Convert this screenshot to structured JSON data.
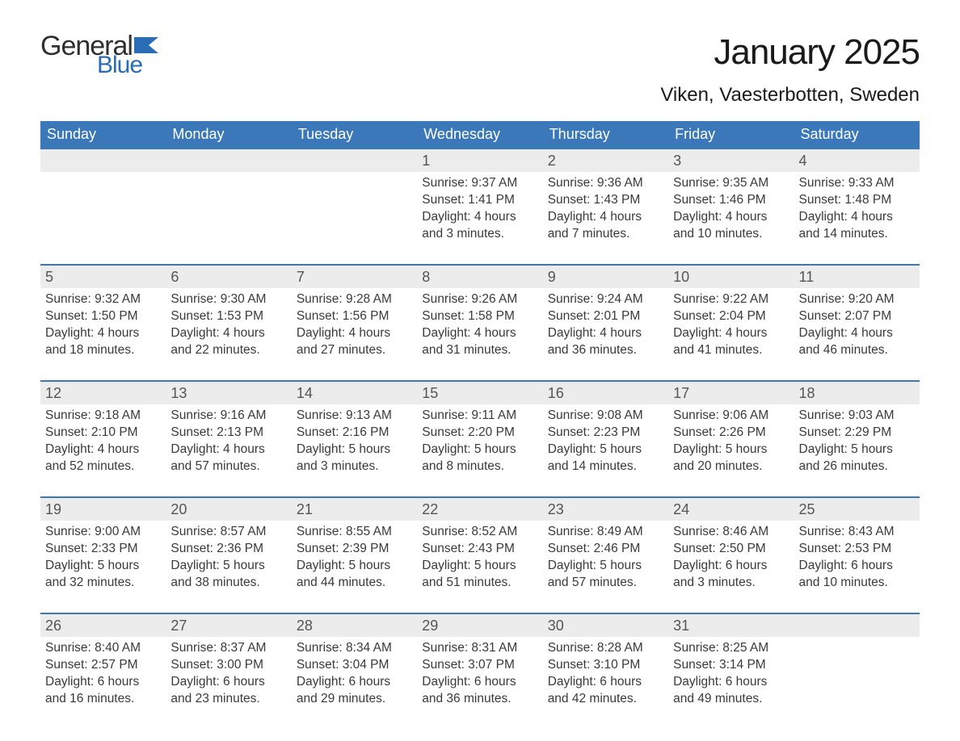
{
  "brand": {
    "word1": "General",
    "word2": "Blue",
    "flag_color": "#2a6db5",
    "text_color": "#2f2f2f"
  },
  "header": {
    "title": "January 2025",
    "location": "Viken, Vaesterbotten, Sweden"
  },
  "style": {
    "header_bg": "#3b78b9",
    "header_text": "#ffffff",
    "row_divider": "#3b78b9",
    "daynum_bg": "#ececec",
    "daynum_color": "#555555",
    "body_text": "#3a3a3a",
    "page_bg": "#ffffff",
    "title_fontsize": 44,
    "location_fontsize": 24,
    "weekday_fontsize": 18,
    "body_fontsize": 15.5
  },
  "weekdays": [
    "Sunday",
    "Monday",
    "Tuesday",
    "Wednesday",
    "Thursday",
    "Friday",
    "Saturday"
  ],
  "weeks": [
    [
      {
        "n": "",
        "empty": true
      },
      {
        "n": "",
        "empty": true
      },
      {
        "n": "",
        "empty": true
      },
      {
        "n": "1",
        "sunrise": "Sunrise: 9:37 AM",
        "sunset": "Sunset: 1:41 PM",
        "day1": "Daylight: 4 hours",
        "day2": "and 3 minutes."
      },
      {
        "n": "2",
        "sunrise": "Sunrise: 9:36 AM",
        "sunset": "Sunset: 1:43 PM",
        "day1": "Daylight: 4 hours",
        "day2": "and 7 minutes."
      },
      {
        "n": "3",
        "sunrise": "Sunrise: 9:35 AM",
        "sunset": "Sunset: 1:46 PM",
        "day1": "Daylight: 4 hours",
        "day2": "and 10 minutes."
      },
      {
        "n": "4",
        "sunrise": "Sunrise: 9:33 AM",
        "sunset": "Sunset: 1:48 PM",
        "day1": "Daylight: 4 hours",
        "day2": "and 14 minutes."
      }
    ],
    [
      {
        "n": "5",
        "sunrise": "Sunrise: 9:32 AM",
        "sunset": "Sunset: 1:50 PM",
        "day1": "Daylight: 4 hours",
        "day2": "and 18 minutes."
      },
      {
        "n": "6",
        "sunrise": "Sunrise: 9:30 AM",
        "sunset": "Sunset: 1:53 PM",
        "day1": "Daylight: 4 hours",
        "day2": "and 22 minutes."
      },
      {
        "n": "7",
        "sunrise": "Sunrise: 9:28 AM",
        "sunset": "Sunset: 1:56 PM",
        "day1": "Daylight: 4 hours",
        "day2": "and 27 minutes."
      },
      {
        "n": "8",
        "sunrise": "Sunrise: 9:26 AM",
        "sunset": "Sunset: 1:58 PM",
        "day1": "Daylight: 4 hours",
        "day2": "and 31 minutes."
      },
      {
        "n": "9",
        "sunrise": "Sunrise: 9:24 AM",
        "sunset": "Sunset: 2:01 PM",
        "day1": "Daylight: 4 hours",
        "day2": "and 36 minutes."
      },
      {
        "n": "10",
        "sunrise": "Sunrise: 9:22 AM",
        "sunset": "Sunset: 2:04 PM",
        "day1": "Daylight: 4 hours",
        "day2": "and 41 minutes."
      },
      {
        "n": "11",
        "sunrise": "Sunrise: 9:20 AM",
        "sunset": "Sunset: 2:07 PM",
        "day1": "Daylight: 4 hours",
        "day2": "and 46 minutes."
      }
    ],
    [
      {
        "n": "12",
        "sunrise": "Sunrise: 9:18 AM",
        "sunset": "Sunset: 2:10 PM",
        "day1": "Daylight: 4 hours",
        "day2": "and 52 minutes."
      },
      {
        "n": "13",
        "sunrise": "Sunrise: 9:16 AM",
        "sunset": "Sunset: 2:13 PM",
        "day1": "Daylight: 4 hours",
        "day2": "and 57 minutes."
      },
      {
        "n": "14",
        "sunrise": "Sunrise: 9:13 AM",
        "sunset": "Sunset: 2:16 PM",
        "day1": "Daylight: 5 hours",
        "day2": "and 3 minutes."
      },
      {
        "n": "15",
        "sunrise": "Sunrise: 9:11 AM",
        "sunset": "Sunset: 2:20 PM",
        "day1": "Daylight: 5 hours",
        "day2": "and 8 minutes."
      },
      {
        "n": "16",
        "sunrise": "Sunrise: 9:08 AM",
        "sunset": "Sunset: 2:23 PM",
        "day1": "Daylight: 5 hours",
        "day2": "and 14 minutes."
      },
      {
        "n": "17",
        "sunrise": "Sunrise: 9:06 AM",
        "sunset": "Sunset: 2:26 PM",
        "day1": "Daylight: 5 hours",
        "day2": "and 20 minutes."
      },
      {
        "n": "18",
        "sunrise": "Sunrise: 9:03 AM",
        "sunset": "Sunset: 2:29 PM",
        "day1": "Daylight: 5 hours",
        "day2": "and 26 minutes."
      }
    ],
    [
      {
        "n": "19",
        "sunrise": "Sunrise: 9:00 AM",
        "sunset": "Sunset: 2:33 PM",
        "day1": "Daylight: 5 hours",
        "day2": "and 32 minutes."
      },
      {
        "n": "20",
        "sunrise": "Sunrise: 8:57 AM",
        "sunset": "Sunset: 2:36 PM",
        "day1": "Daylight: 5 hours",
        "day2": "and 38 minutes."
      },
      {
        "n": "21",
        "sunrise": "Sunrise: 8:55 AM",
        "sunset": "Sunset: 2:39 PM",
        "day1": "Daylight: 5 hours",
        "day2": "and 44 minutes."
      },
      {
        "n": "22",
        "sunrise": "Sunrise: 8:52 AM",
        "sunset": "Sunset: 2:43 PM",
        "day1": "Daylight: 5 hours",
        "day2": "and 51 minutes."
      },
      {
        "n": "23",
        "sunrise": "Sunrise: 8:49 AM",
        "sunset": "Sunset: 2:46 PM",
        "day1": "Daylight: 5 hours",
        "day2": "and 57 minutes."
      },
      {
        "n": "24",
        "sunrise": "Sunrise: 8:46 AM",
        "sunset": "Sunset: 2:50 PM",
        "day1": "Daylight: 6 hours",
        "day2": "and 3 minutes."
      },
      {
        "n": "25",
        "sunrise": "Sunrise: 8:43 AM",
        "sunset": "Sunset: 2:53 PM",
        "day1": "Daylight: 6 hours",
        "day2": "and 10 minutes."
      }
    ],
    [
      {
        "n": "26",
        "sunrise": "Sunrise: 8:40 AM",
        "sunset": "Sunset: 2:57 PM",
        "day1": "Daylight: 6 hours",
        "day2": "and 16 minutes."
      },
      {
        "n": "27",
        "sunrise": "Sunrise: 8:37 AM",
        "sunset": "Sunset: 3:00 PM",
        "day1": "Daylight: 6 hours",
        "day2": "and 23 minutes."
      },
      {
        "n": "28",
        "sunrise": "Sunrise: 8:34 AM",
        "sunset": "Sunset: 3:04 PM",
        "day1": "Daylight: 6 hours",
        "day2": "and 29 minutes."
      },
      {
        "n": "29",
        "sunrise": "Sunrise: 8:31 AM",
        "sunset": "Sunset: 3:07 PM",
        "day1": "Daylight: 6 hours",
        "day2": "and 36 minutes."
      },
      {
        "n": "30",
        "sunrise": "Sunrise: 8:28 AM",
        "sunset": "Sunset: 3:10 PM",
        "day1": "Daylight: 6 hours",
        "day2": "and 42 minutes."
      },
      {
        "n": "31",
        "sunrise": "Sunrise: 8:25 AM",
        "sunset": "Sunset: 3:14 PM",
        "day1": "Daylight: 6 hours",
        "day2": "and 49 minutes."
      },
      {
        "n": "",
        "empty": true
      }
    ]
  ]
}
